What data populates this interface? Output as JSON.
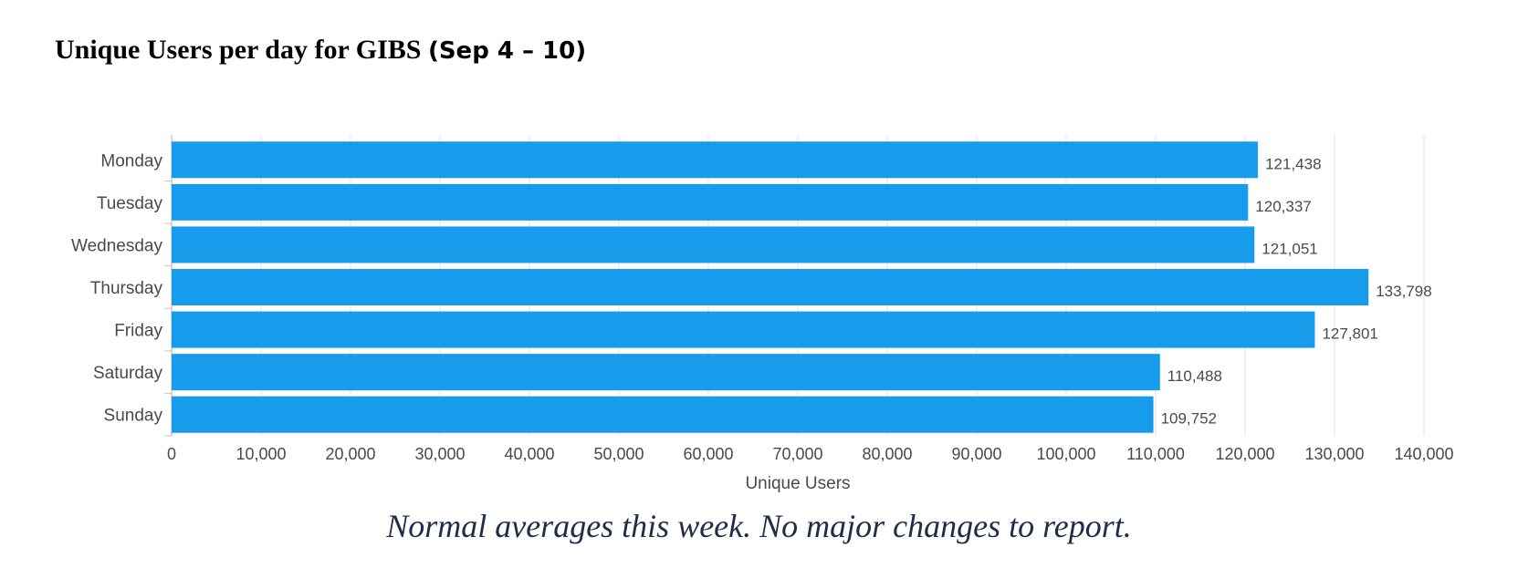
{
  "header": {
    "title_main": "Unique Users per day for GIBS ",
    "title_range": "(Sep 4 – 10)"
  },
  "chart_data": {
    "type": "bar",
    "orientation": "horizontal",
    "categories": [
      "Monday",
      "Tuesday",
      "Wednesday",
      "Thursday",
      "Friday",
      "Saturday",
      "Sunday"
    ],
    "values": [
      121438,
      120337,
      121051,
      133798,
      127801,
      110488,
      109752
    ],
    "data_labels": [
      "121,438",
      "120,337",
      "121,051",
      "133,798",
      "127,801",
      "110,488",
      "109,752"
    ],
    "xlabel": "Unique Users",
    "xlim": [
      0,
      140000
    ],
    "xticks": [
      0,
      10000,
      20000,
      30000,
      40000,
      50000,
      60000,
      70000,
      80000,
      90000,
      100000,
      110000,
      120000,
      130000,
      140000
    ],
    "xtick_labels": [
      "0",
      "10,000",
      "20,000",
      "30,000",
      "40,000",
      "50,000",
      "60,000",
      "70,000",
      "80,000",
      "90,000",
      "100,000",
      "110,000",
      "120,000",
      "130,000",
      "140,000"
    ],
    "grid": true,
    "colors": {
      "bar": "#179ceb",
      "grid": "#e0e0e0",
      "text": "#4a4a4a"
    }
  },
  "footer": {
    "caption": "Normal averages this week.  No major changes to report."
  }
}
